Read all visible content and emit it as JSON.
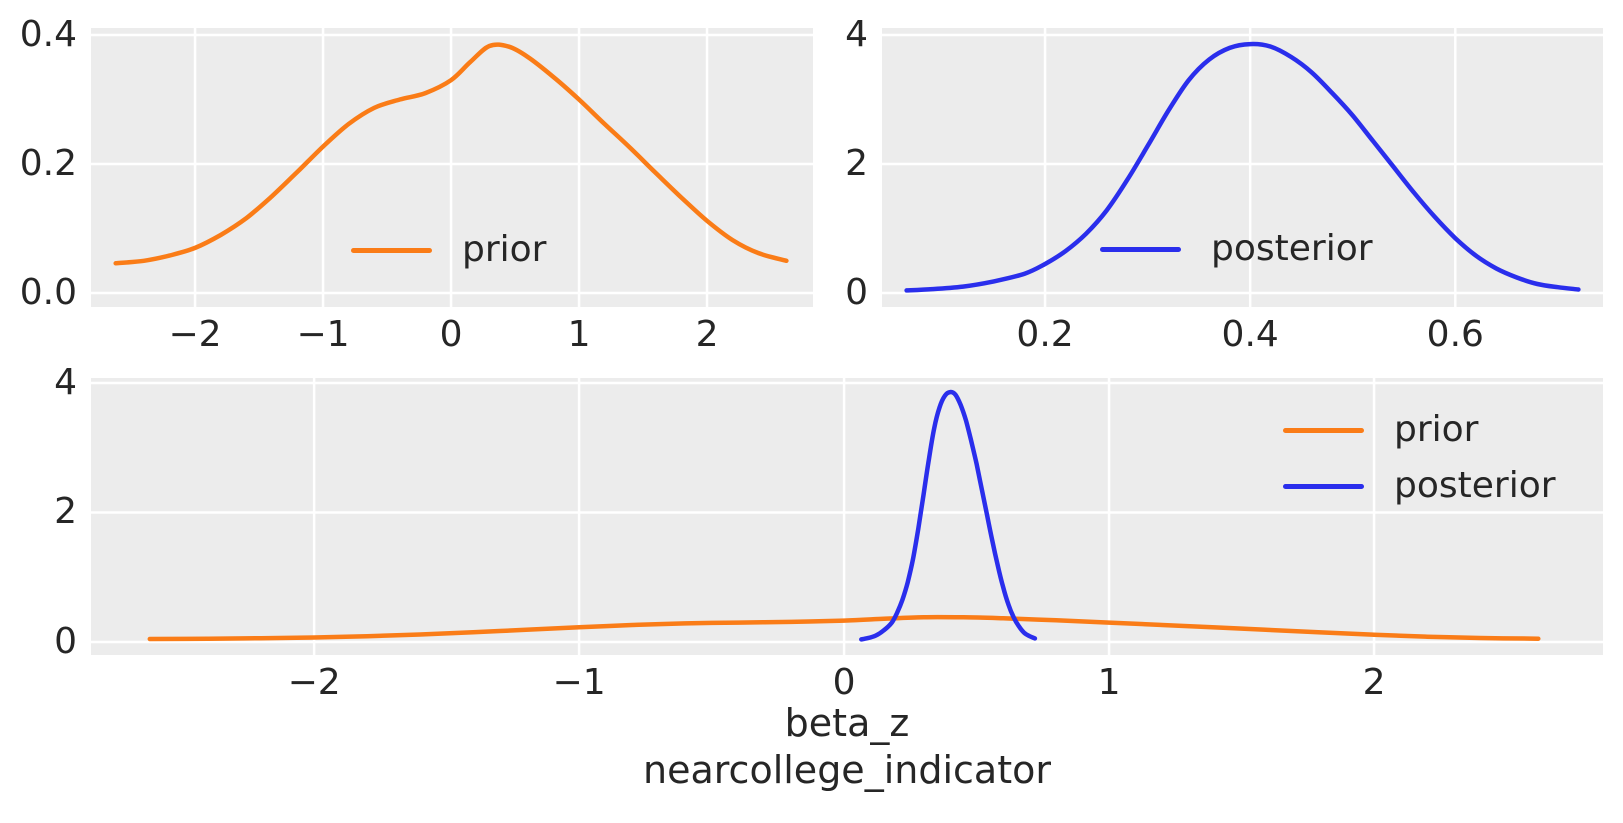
{
  "figure": {
    "background": "#ffffff",
    "axes_background": "#ececec",
    "grid_color": "#ffffff",
    "text_color": "#262626"
  },
  "chart_data": [
    {
      "id": "prior-marginal",
      "type": "line",
      "position": "top-left",
      "title": "",
      "xlabel": "",
      "ylabel": "",
      "grid": true,
      "xlim": [
        -2.813,
        2.828
      ],
      "ylim": [
        -0.0217,
        0.4109
      ],
      "xticks": [
        {
          "v": -2,
          "label": "−2"
        },
        {
          "v": -1,
          "label": "−1"
        },
        {
          "v": 0,
          "label": "0"
        },
        {
          "v": 1,
          "label": "1"
        },
        {
          "v": 2,
          "label": "2"
        }
      ],
      "yticks": [
        {
          "v": 0,
          "label": "0.0"
        },
        {
          "v": 0.2,
          "label": "0.2"
        },
        {
          "v": 0.4,
          "label": "0.4"
        }
      ],
      "legend": {
        "position": "lower-center",
        "entries": [
          "prior"
        ]
      },
      "series": [
        {
          "name": "prior",
          "color": "#fa7c17",
          "x": [
            -2.62,
            -2.4,
            -2.2,
            -2.0,
            -1.8,
            -1.6,
            -1.4,
            -1.2,
            -1.0,
            -0.8,
            -0.6,
            -0.4,
            -0.2,
            0.0,
            0.15,
            0.3,
            0.45,
            0.6,
            0.8,
            1.0,
            1.2,
            1.4,
            1.6,
            1.8,
            2.0,
            2.2,
            2.4,
            2.62
          ],
          "y": [
            0.046,
            0.05,
            0.058,
            0.07,
            0.09,
            0.116,
            0.15,
            0.188,
            0.227,
            0.262,
            0.287,
            0.3,
            0.31,
            0.33,
            0.358,
            0.383,
            0.382,
            0.366,
            0.335,
            0.3,
            0.262,
            0.225,
            0.186,
            0.148,
            0.112,
            0.082,
            0.062,
            0.05
          ]
        }
      ]
    },
    {
      "id": "posterior-marginal",
      "type": "line",
      "position": "top-right",
      "title": "",
      "xlabel": "",
      "ylabel": "",
      "grid": true,
      "xlim": [
        0.041,
        0.744
      ],
      "ylim": [
        -0.217,
        4.109
      ],
      "xticks": [
        {
          "v": 0.2,
          "label": "0.2"
        },
        {
          "v": 0.4,
          "label": "0.4"
        },
        {
          "v": 0.6,
          "label": "0.6"
        }
      ],
      "yticks": [
        {
          "v": 0,
          "label": "0"
        },
        {
          "v": 2,
          "label": "2"
        },
        {
          "v": 4,
          "label": "4"
        }
      ],
      "legend": {
        "position": "lower-center",
        "entries": [
          "posterior"
        ]
      },
      "series": [
        {
          "name": "posterior",
          "color": "#2a2eec",
          "x": [
            0.065,
            0.09,
            0.12,
            0.15,
            0.18,
            0.2,
            0.22,
            0.24,
            0.26,
            0.28,
            0.3,
            0.32,
            0.34,
            0.36,
            0.38,
            0.4,
            0.42,
            0.44,
            0.46,
            0.48,
            0.5,
            0.52,
            0.54,
            0.56,
            0.58,
            0.6,
            0.62,
            0.64,
            0.66,
            0.68,
            0.7,
            0.72
          ],
          "y": [
            0.04,
            0.06,
            0.1,
            0.18,
            0.3,
            0.45,
            0.65,
            0.92,
            1.28,
            1.75,
            2.28,
            2.82,
            3.3,
            3.62,
            3.8,
            3.86,
            3.82,
            3.66,
            3.42,
            3.1,
            2.75,
            2.35,
            1.95,
            1.55,
            1.18,
            0.85,
            0.58,
            0.38,
            0.24,
            0.14,
            0.09,
            0.055
          ]
        }
      ]
    },
    {
      "id": "prior-posterior-combined",
      "type": "line",
      "position": "bottom",
      "title": "",
      "xlabel": "beta_z\nnearcollege_indicator",
      "xlabel_lines": [
        "beta_z",
        "nearcollege_indicator"
      ],
      "ylabel": "",
      "grid": true,
      "xlim": [
        -2.842,
        2.864
      ],
      "ylim": [
        -0.201,
        4.077
      ],
      "xticks": [
        {
          "v": -2,
          "label": "−2"
        },
        {
          "v": -1,
          "label": "−1"
        },
        {
          "v": 0,
          "label": "0"
        },
        {
          "v": 1,
          "label": "1"
        },
        {
          "v": 2,
          "label": "2"
        }
      ],
      "yticks": [
        {
          "v": 0,
          "label": "0"
        },
        {
          "v": 2,
          "label": "2"
        },
        {
          "v": 4,
          "label": "4"
        }
      ],
      "legend": {
        "position": "upper-right",
        "entries": [
          "prior",
          "posterior"
        ]
      },
      "series": [
        {
          "name": "prior",
          "color": "#fa7c17",
          "x": [
            -2.62,
            -2.4,
            -2.2,
            -2.0,
            -1.8,
            -1.6,
            -1.4,
            -1.2,
            -1.0,
            -0.8,
            -0.6,
            -0.4,
            -0.2,
            0.0,
            0.15,
            0.3,
            0.45,
            0.6,
            0.8,
            1.0,
            1.2,
            1.4,
            1.6,
            1.8,
            2.0,
            2.2,
            2.4,
            2.62
          ],
          "y": [
            0.046,
            0.05,
            0.058,
            0.07,
            0.09,
            0.116,
            0.15,
            0.188,
            0.227,
            0.262,
            0.287,
            0.3,
            0.31,
            0.33,
            0.358,
            0.383,
            0.382,
            0.366,
            0.335,
            0.3,
            0.262,
            0.225,
            0.186,
            0.148,
            0.112,
            0.082,
            0.062,
            0.05
          ]
        },
        {
          "name": "posterior",
          "color": "#2a2eec",
          "x": [
            0.065,
            0.09,
            0.12,
            0.15,
            0.18,
            0.2,
            0.22,
            0.24,
            0.26,
            0.28,
            0.3,
            0.32,
            0.34,
            0.36,
            0.38,
            0.4,
            0.42,
            0.44,
            0.46,
            0.48,
            0.5,
            0.52,
            0.54,
            0.56,
            0.58,
            0.6,
            0.62,
            0.64,
            0.66,
            0.68,
            0.7,
            0.72
          ],
          "y": [
            0.04,
            0.06,
            0.1,
            0.18,
            0.3,
            0.45,
            0.65,
            0.92,
            1.28,
            1.75,
            2.28,
            2.82,
            3.3,
            3.62,
            3.8,
            3.86,
            3.82,
            3.66,
            3.42,
            3.1,
            2.75,
            2.35,
            1.95,
            1.55,
            1.18,
            0.85,
            0.58,
            0.38,
            0.24,
            0.14,
            0.09,
            0.055
          ]
        }
      ]
    }
  ]
}
